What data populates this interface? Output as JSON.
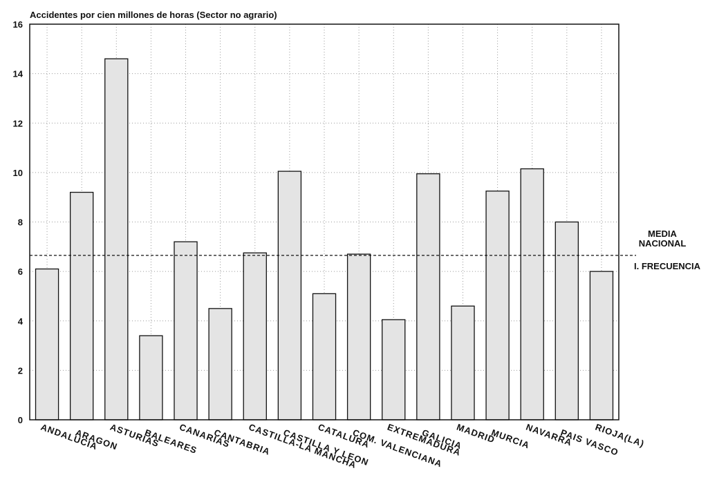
{
  "chart_data": {
    "type": "bar",
    "title": "Accidentes por cien millones de horas (Sector no agrario)",
    "categories": [
      "ANDALUCIA",
      "ARAGON",
      "ASTURIAS",
      "BALEARES",
      "CANARIAS",
      "CANTABRIA",
      "CASTILLA-LA MANCHA",
      "CASTILLA Y LEON",
      "CATALURA",
      "COM. VALENCIANA",
      "EXTREMADURA",
      "GALICIA",
      "MADRID",
      "MURCIA",
      "NAVARRA",
      "PAIS VASCO",
      "RIOJA(LA)"
    ],
    "values": [
      6.1,
      9.2,
      14.6,
      3.4,
      7.2,
      4.5,
      6.75,
      10.05,
      5.1,
      6.7,
      4.05,
      9.95,
      4.6,
      9.25,
      10.15,
      8.0,
      6.0
    ],
    "color": "#e4e4e4",
    "ylim": [
      0,
      16
    ],
    "yticks": [
      0,
      2,
      4,
      6,
      8,
      10,
      12,
      14,
      16
    ],
    "grid": true,
    "reference_line": {
      "value": 6.65,
      "labels": [
        "MEDIA",
        "NACIONAL",
        "I. FRECUENCIA"
      ]
    }
  }
}
